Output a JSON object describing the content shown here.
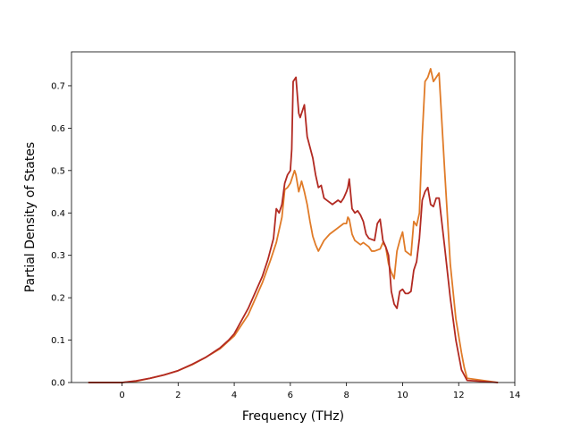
{
  "chart_data": {
    "type": "line",
    "title": "",
    "xlabel": "Frequency (THz)",
    "ylabel": "Partial Density of States",
    "xlim": [
      -1.8,
      14.0
    ],
    "ylim": [
      0.0,
      0.78
    ],
    "xticks": [
      0,
      2,
      4,
      6,
      8,
      10,
      12,
      14
    ],
    "yticks": [
      0.0,
      0.1,
      0.2,
      0.3,
      0.4,
      0.5,
      0.6,
      0.7
    ],
    "xtick_labels": [
      "0",
      "2",
      "4",
      "6",
      "8",
      "10",
      "12",
      "14"
    ],
    "ytick_labels": [
      "0.0",
      "0.1",
      "0.2",
      "0.3",
      "0.4",
      "0.5",
      "0.6",
      "0.7"
    ],
    "grid": false,
    "legend": "none",
    "series": [
      {
        "color": "#e07b28",
        "x": [
          -1.2,
          0.0,
          0.5,
          1.0,
          1.5,
          2.0,
          2.5,
          3.0,
          3.5,
          3.8,
          4.0,
          4.5,
          5.0,
          5.3,
          5.5,
          5.6,
          5.7,
          5.8,
          5.9,
          6.0,
          6.1,
          6.15,
          6.2,
          6.3,
          6.4,
          6.5,
          6.6,
          6.7,
          6.8,
          6.9,
          7.0,
          7.2,
          7.4,
          7.6,
          7.8,
          7.9,
          8.0,
          8.05,
          8.1,
          8.2,
          8.3,
          8.4,
          8.5,
          8.6,
          8.7,
          8.8,
          8.9,
          9.0,
          9.2,
          9.3,
          9.4,
          9.5,
          9.6,
          9.7,
          9.8,
          9.9,
          10.0,
          10.1,
          10.2,
          10.3,
          10.4,
          10.5,
          10.6,
          10.7,
          10.8,
          10.9,
          11.0,
          11.1,
          11.2,
          11.3,
          11.5,
          11.7,
          11.9,
          12.1,
          12.2,
          12.3,
          13.4
        ],
        "y": [
          0.0,
          0.0,
          0.003,
          0.01,
          0.018,
          0.028,
          0.042,
          0.06,
          0.08,
          0.098,
          0.11,
          0.16,
          0.235,
          0.29,
          0.33,
          0.36,
          0.39,
          0.455,
          0.46,
          0.47,
          0.49,
          0.5,
          0.49,
          0.45,
          0.475,
          0.45,
          0.42,
          0.38,
          0.345,
          0.325,
          0.31,
          0.335,
          0.35,
          0.36,
          0.37,
          0.375,
          0.375,
          0.39,
          0.385,
          0.35,
          0.335,
          0.33,
          0.325,
          0.33,
          0.325,
          0.32,
          0.31,
          0.31,
          0.315,
          0.33,
          0.32,
          0.28,
          0.26,
          0.245,
          0.31,
          0.335,
          0.355,
          0.31,
          0.305,
          0.3,
          0.38,
          0.37,
          0.4,
          0.58,
          0.71,
          0.72,
          0.74,
          0.71,
          0.72,
          0.73,
          0.5,
          0.28,
          0.15,
          0.07,
          0.035,
          0.01,
          0.0
        ]
      },
      {
        "color": "#b22a22",
        "x": [
          -1.2,
          0.0,
          0.5,
          1.0,
          1.5,
          2.0,
          2.5,
          3.0,
          3.5,
          3.8,
          4.0,
          4.5,
          5.0,
          5.2,
          5.4,
          5.5,
          5.6,
          5.7,
          5.8,
          5.9,
          6.0,
          6.05,
          6.1,
          6.15,
          6.2,
          6.3,
          6.35,
          6.4,
          6.5,
          6.6,
          6.8,
          6.9,
          7.0,
          7.1,
          7.2,
          7.3,
          7.5,
          7.7,
          7.8,
          7.9,
          8.0,
          8.05,
          8.1,
          8.2,
          8.3,
          8.4,
          8.5,
          8.6,
          8.7,
          8.8,
          9.0,
          9.1,
          9.2,
          9.3,
          9.4,
          9.5,
          9.6,
          9.7,
          9.8,
          9.9,
          10.0,
          10.1,
          10.2,
          10.3,
          10.4,
          10.5,
          10.6,
          10.7,
          10.8,
          10.9,
          11.0,
          11.1,
          11.2,
          11.3,
          11.5,
          11.7,
          11.9,
          12.1,
          12.3,
          13.4
        ],
        "y": [
          0.0,
          0.0,
          0.004,
          0.01,
          0.018,
          0.028,
          0.043,
          0.06,
          0.082,
          0.1,
          0.115,
          0.175,
          0.25,
          0.29,
          0.34,
          0.41,
          0.4,
          0.42,
          0.47,
          0.49,
          0.5,
          0.55,
          0.71,
          0.715,
          0.72,
          0.635,
          0.625,
          0.635,
          0.655,
          0.58,
          0.53,
          0.49,
          0.46,
          0.465,
          0.435,
          0.43,
          0.42,
          0.43,
          0.425,
          0.435,
          0.45,
          0.46,
          0.48,
          0.41,
          0.4,
          0.405,
          0.395,
          0.38,
          0.35,
          0.34,
          0.335,
          0.375,
          0.385,
          0.335,
          0.32,
          0.3,
          0.215,
          0.185,
          0.175,
          0.215,
          0.22,
          0.21,
          0.21,
          0.215,
          0.265,
          0.285,
          0.34,
          0.43,
          0.45,
          0.46,
          0.42,
          0.415,
          0.435,
          0.435,
          0.32,
          0.2,
          0.1,
          0.03,
          0.005,
          0.0
        ]
      }
    ]
  }
}
